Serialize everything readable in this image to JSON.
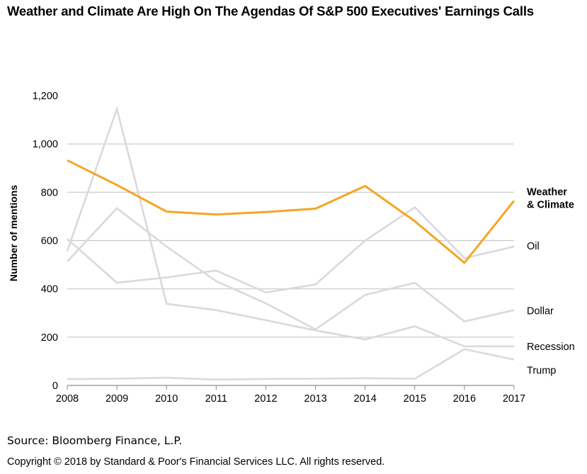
{
  "title": "Weather and Climate Are High On The Agendas Of S&P 500 Executives' Earnings Calls",
  "source": "Source: Bloomberg Finance, L.P.",
  "copyright": "Copyright © 2018 by Standard & Poor's Financial Services LLC. All rights reserved.",
  "colors": {
    "highlight": "#F5A623",
    "other_series": "#D9D9D9",
    "grid": "#C8C8C8",
    "axis": "#8C8C8C"
  },
  "chart_data": {
    "type": "line",
    "title": "Weather and Climate Are High On The Agendas Of S&P 500 Executives' Earnings Calls",
    "xlabel": "",
    "ylabel": "Number of mentions",
    "x": [
      2008,
      2009,
      2010,
      2011,
      2012,
      2013,
      2014,
      2015,
      2016,
      2017
    ],
    "x_tick_labels": [
      "2008",
      "2009",
      "2010",
      "2011",
      "2012",
      "2013",
      "2014",
      "2015",
      "2016",
      "2017"
    ],
    "ylim": [
      0,
      1200
    ],
    "y_ticks": [
      0,
      200,
      400,
      600,
      800,
      1000,
      1200
    ],
    "y_tick_labels": [
      "0",
      "200",
      "400",
      "600",
      "800",
      "1,000",
      "1,200"
    ],
    "grid": true,
    "legend": "direct labels at right end of each line",
    "series": [
      {
        "name": "Weather & Climate",
        "label_lines": [
          "Weather",
          "& Climate"
        ],
        "highlight": true,
        "values": [
          932,
          830,
          720,
          708,
          718,
          732,
          826,
          680,
          508,
          765
        ]
      },
      {
        "name": "Oil",
        "label_lines": [
          "Oil"
        ],
        "highlight": false,
        "values": [
          607,
          425,
          447,
          476,
          385,
          418,
          600,
          738,
          527,
          575
        ]
      },
      {
        "name": "Dollar",
        "label_lines": [
          "Dollar"
        ],
        "highlight": false,
        "values": [
          513,
          734,
          575,
          432,
          340,
          232,
          375,
          425,
          265,
          312
        ]
      },
      {
        "name": "Recession",
        "label_lines": [
          "Recession"
        ],
        "highlight": false,
        "values": [
          557,
          1145,
          338,
          312,
          270,
          228,
          190,
          245,
          162,
          162
        ]
      },
      {
        "name": "Trump",
        "label_lines": [
          "Trump"
        ],
        "highlight": false,
        "values": [
          26,
          28,
          32,
          24,
          27,
          28,
          30,
          28,
          150,
          107
        ]
      }
    ]
  }
}
